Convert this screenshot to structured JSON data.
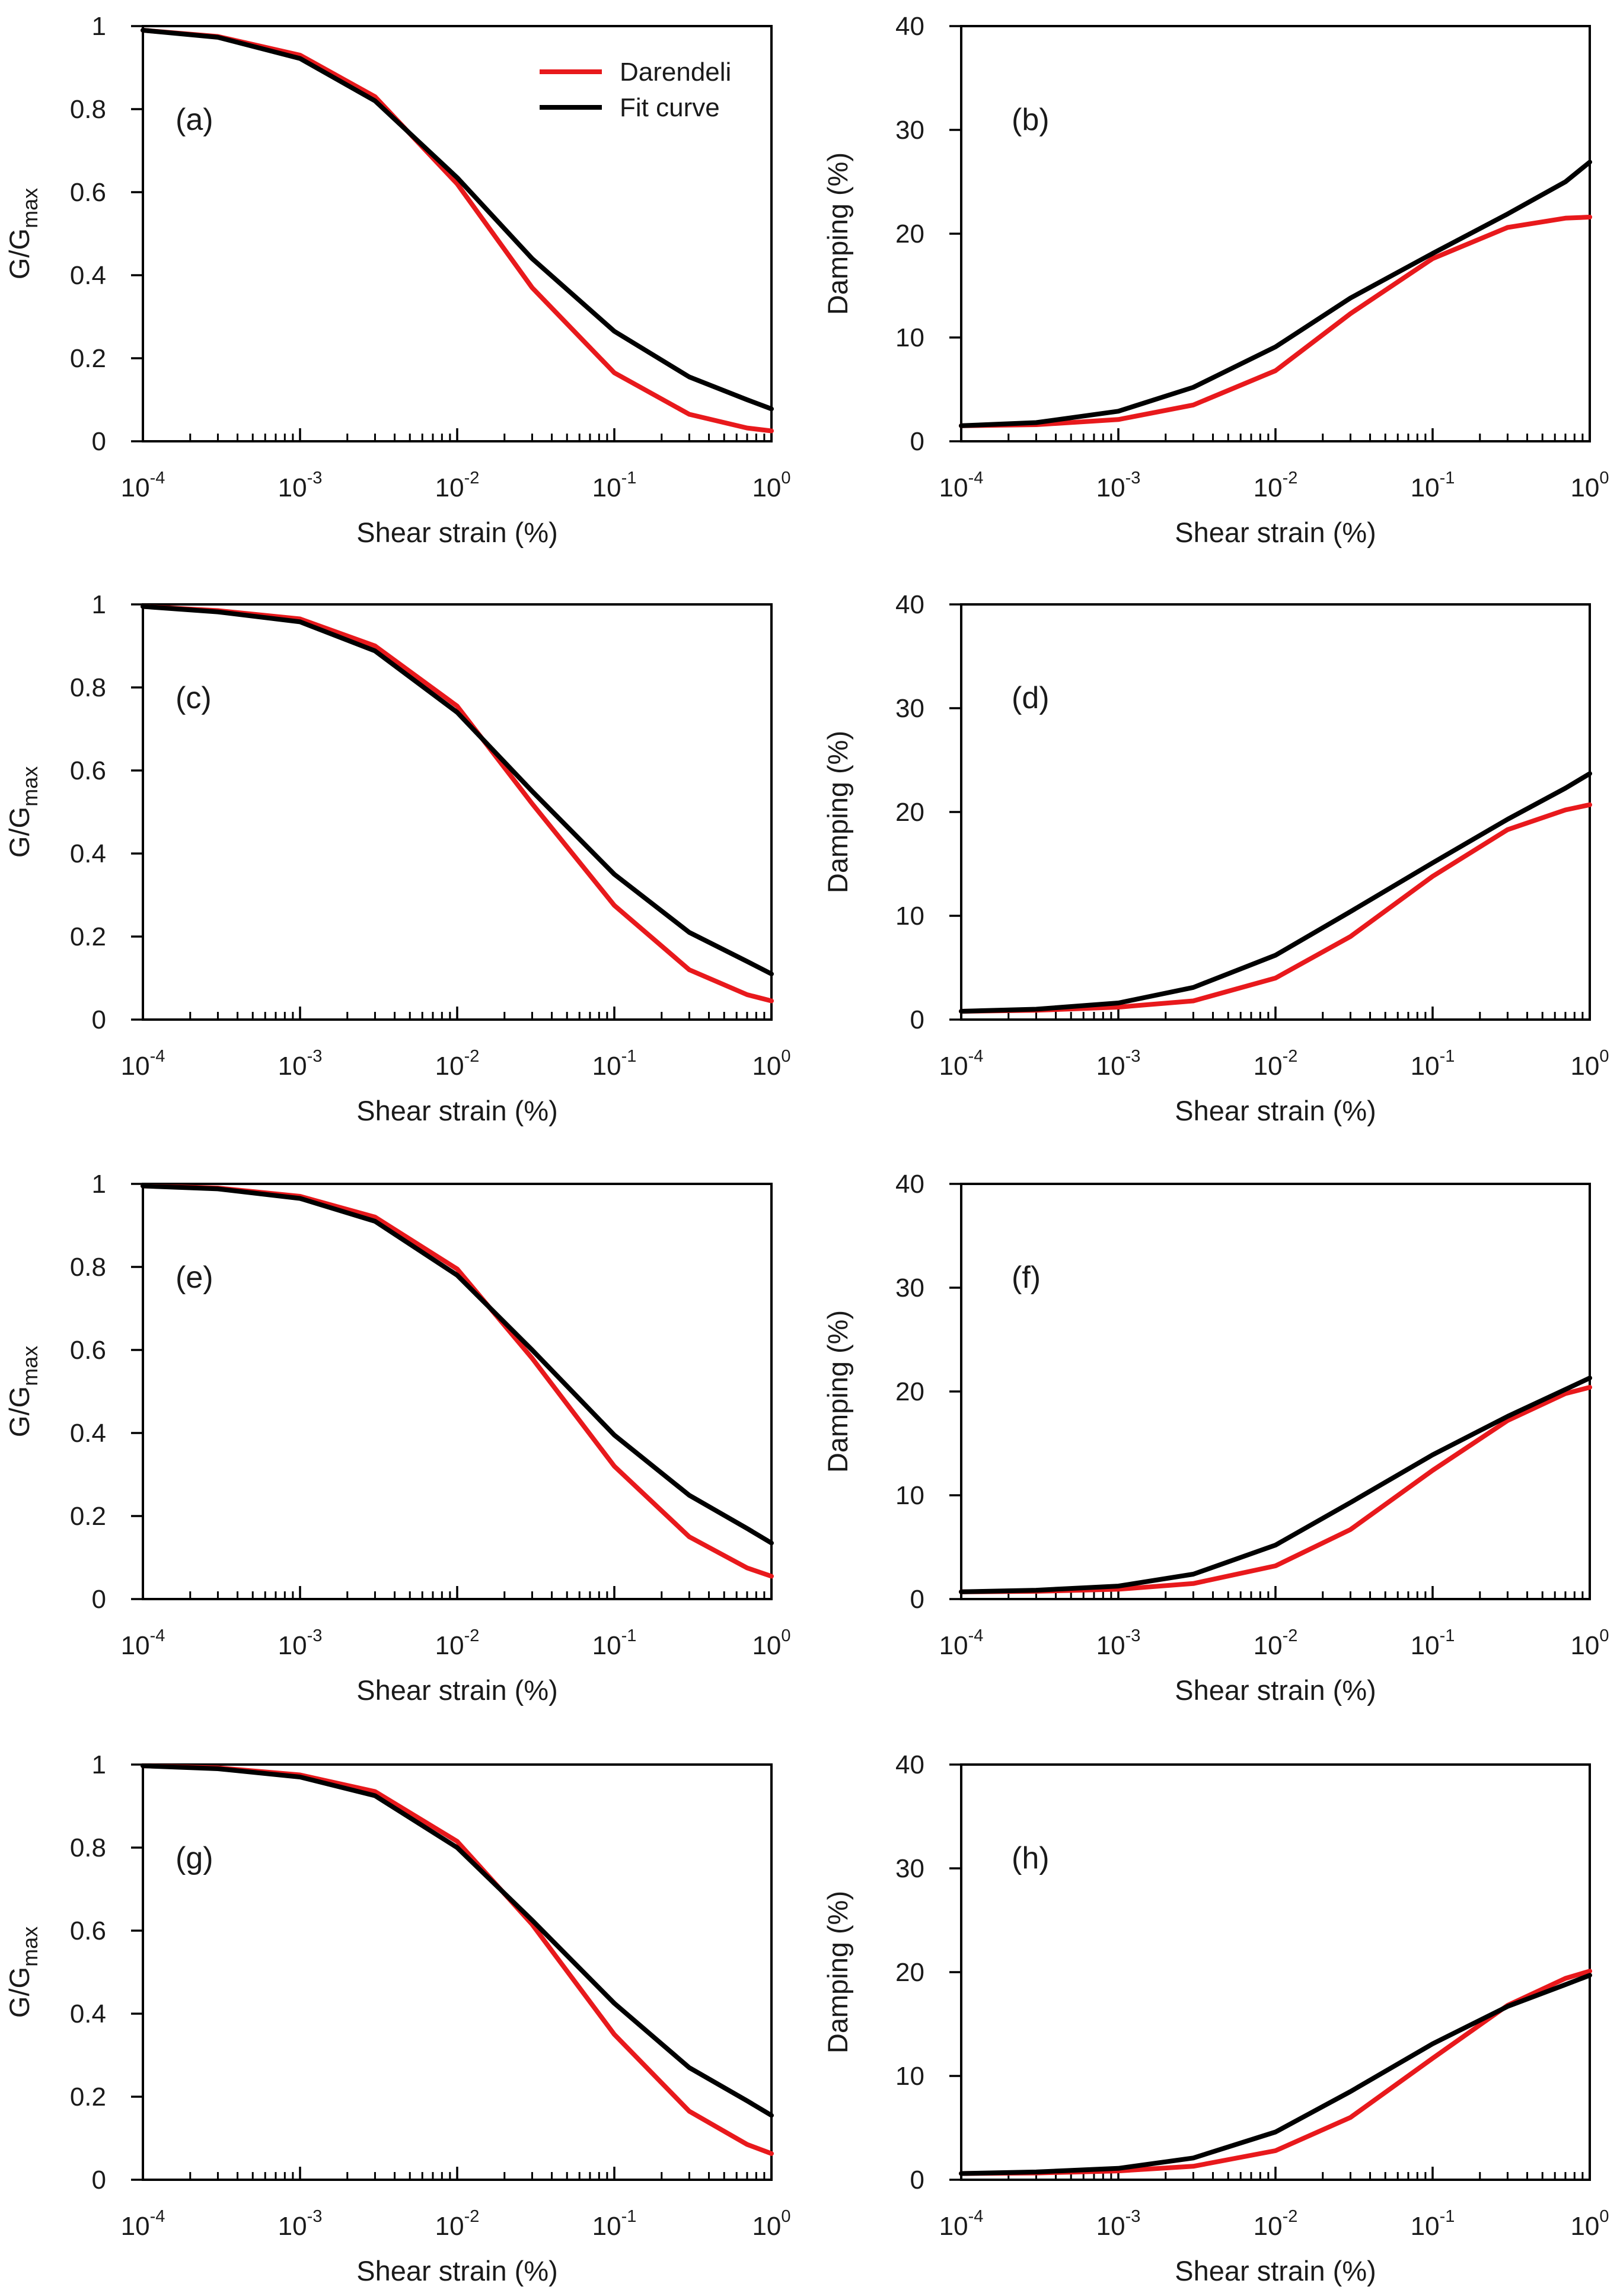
{
  "colors": {
    "darendeli": "#e8191c",
    "fit": "#000000",
    "axis": "#000000"
  },
  "legend": {
    "placement": "top-right of panel (a)",
    "items": [
      "Darendeli",
      "Fit curve"
    ]
  },
  "chart_data": [
    {
      "panel": "(a)",
      "type": "line",
      "xscale": "log",
      "xlim": [
        0.0001,
        1
      ],
      "ylim": [
        0,
        1
      ],
      "yticks": [
        "0",
        "0.2",
        "0.4",
        "0.6",
        "0.8",
        "1"
      ],
      "xlabel": "Shear strain (%)",
      "ylabel": "G/Gmax",
      "x": [
        0.0001,
        0.0003,
        0.001,
        0.003,
        0.01,
        0.03,
        0.1,
        0.3,
        0.7,
        1
      ],
      "series": [
        {
          "name": "Darendeli",
          "values": [
            0.99,
            0.975,
            0.93,
            0.83,
            0.62,
            0.37,
            0.165,
            0.065,
            0.032,
            0.025
          ]
        },
        {
          "name": "Fit curve",
          "values": [
            0.99,
            0.973,
            0.922,
            0.82,
            0.635,
            0.44,
            0.265,
            0.155,
            0.1,
            0.078
          ]
        }
      ]
    },
    {
      "panel": "(b)",
      "type": "line",
      "xscale": "log",
      "xlim": [
        0.0001,
        1
      ],
      "ylim": [
        0,
        40
      ],
      "yticks": [
        "0",
        "10",
        "20",
        "30",
        "40"
      ],
      "xlabel": "Shear strain (%)",
      "ylabel": "Damping (%)",
      "x": [
        0.0001,
        0.0003,
        0.001,
        0.003,
        0.01,
        0.03,
        0.1,
        0.3,
        0.7,
        1
      ],
      "series": [
        {
          "name": "Darendeli",
          "values": [
            1.5,
            1.6,
            2.1,
            3.5,
            6.8,
            12.3,
            17.6,
            20.6,
            21.5,
            21.6
          ]
        },
        {
          "name": "Fit curve",
          "values": [
            1.5,
            1.8,
            2.9,
            5.2,
            9.1,
            13.8,
            18.1,
            21.9,
            25.0,
            26.9
          ]
        }
      ]
    },
    {
      "panel": "(c)",
      "type": "line",
      "xscale": "log",
      "xlim": [
        0.0001,
        1
      ],
      "ylim": [
        0,
        1
      ],
      "yticks": [
        "0",
        "0.2",
        "0.4",
        "0.6",
        "0.8",
        "1"
      ],
      "xlabel": "Shear strain (%)",
      "ylabel": "G/Gmax",
      "x": [
        0.0001,
        0.0003,
        0.001,
        0.003,
        0.01,
        0.03,
        0.1,
        0.3,
        0.7,
        1
      ],
      "series": [
        {
          "name": "Darendeli",
          "values": [
            0.995,
            0.985,
            0.965,
            0.9,
            0.755,
            0.52,
            0.275,
            0.12,
            0.06,
            0.045
          ]
        },
        {
          "name": "Fit curve",
          "values": [
            0.995,
            0.982,
            0.958,
            0.888,
            0.74,
            0.55,
            0.35,
            0.21,
            0.14,
            0.11
          ]
        }
      ]
    },
    {
      "panel": "(d)",
      "type": "line",
      "xscale": "log",
      "xlim": [
        0.0001,
        1
      ],
      "ylim": [
        0,
        40
      ],
      "yticks": [
        "0",
        "10",
        "20",
        "30",
        "40"
      ],
      "xlabel": "Shear strain (%)",
      "ylabel": "Damping (%)",
      "x": [
        0.0001,
        0.0003,
        0.001,
        0.003,
        0.01,
        0.03,
        0.1,
        0.3,
        0.7,
        1
      ],
      "series": [
        {
          "name": "Darendeli",
          "values": [
            0.8,
            0.9,
            1.2,
            1.8,
            4.0,
            8.0,
            13.8,
            18.3,
            20.2,
            20.7
          ]
        },
        {
          "name": "Fit curve",
          "values": [
            0.8,
            1.0,
            1.6,
            3.1,
            6.2,
            10.4,
            15.1,
            19.3,
            22.3,
            23.7
          ]
        }
      ]
    },
    {
      "panel": "(e)",
      "type": "line",
      "xscale": "log",
      "xlim": [
        0.0001,
        1
      ],
      "ylim": [
        0,
        1
      ],
      "yticks": [
        "0",
        "0.2",
        "0.4",
        "0.6",
        "0.8",
        "1"
      ],
      "xlabel": "Shear strain (%)",
      "ylabel": "G/Gmax",
      "x": [
        0.0001,
        0.0003,
        0.001,
        0.003,
        0.01,
        0.03,
        0.1,
        0.3,
        0.7,
        1
      ],
      "series": [
        {
          "name": "Darendeli",
          "values": [
            0.995,
            0.99,
            0.97,
            0.92,
            0.795,
            0.58,
            0.32,
            0.15,
            0.075,
            0.055
          ]
        },
        {
          "name": "Fit curve",
          "values": [
            0.995,
            0.988,
            0.965,
            0.91,
            0.78,
            0.6,
            0.395,
            0.25,
            0.17,
            0.135
          ]
        }
      ]
    },
    {
      "panel": "(f)",
      "type": "line",
      "xscale": "log",
      "xlim": [
        0.0001,
        1
      ],
      "ylim": [
        0,
        40
      ],
      "yticks": [
        "0",
        "10",
        "20",
        "30",
        "40"
      ],
      "xlabel": "Shear strain (%)",
      "ylabel": "Damping (%)",
      "x": [
        0.0001,
        0.0003,
        0.001,
        0.003,
        0.01,
        0.03,
        0.1,
        0.3,
        0.7,
        1
      ],
      "series": [
        {
          "name": "Darendeli",
          "values": [
            0.7,
            0.75,
            0.95,
            1.5,
            3.2,
            6.7,
            12.4,
            17.2,
            19.8,
            20.4
          ]
        },
        {
          "name": "Fit curve",
          "values": [
            0.7,
            0.85,
            1.25,
            2.4,
            5.2,
            9.3,
            13.9,
            17.6,
            20.2,
            21.3
          ]
        }
      ]
    },
    {
      "panel": "(g)",
      "type": "line",
      "xscale": "log",
      "xlim": [
        0.0001,
        1
      ],
      "ylim": [
        0,
        1
      ],
      "yticks": [
        "0",
        "0.2",
        "0.4",
        "0.6",
        "0.8",
        "1"
      ],
      "xlabel": "Shear strain (%)",
      "ylabel": "G/Gmax",
      "x": [
        0.0001,
        0.0003,
        0.001,
        0.003,
        0.01,
        0.03,
        0.1,
        0.3,
        0.7,
        1
      ],
      "series": [
        {
          "name": "Darendeli",
          "values": [
            0.997,
            0.992,
            0.975,
            0.935,
            0.815,
            0.615,
            0.35,
            0.165,
            0.085,
            0.063
          ]
        },
        {
          "name": "Fit curve",
          "values": [
            0.997,
            0.99,
            0.97,
            0.925,
            0.8,
            0.625,
            0.425,
            0.27,
            0.19,
            0.155
          ]
        }
      ]
    },
    {
      "panel": "(h)",
      "type": "line",
      "xscale": "log",
      "xlim": [
        0.0001,
        1
      ],
      "ylim": [
        0,
        40
      ],
      "yticks": [
        "0",
        "10",
        "20",
        "30",
        "40"
      ],
      "xlabel": "Shear strain (%)",
      "ylabel": "Damping (%)",
      "x": [
        0.0001,
        0.0003,
        0.001,
        0.003,
        0.01,
        0.03,
        0.1,
        0.3,
        0.7,
        1
      ],
      "series": [
        {
          "name": "Darendeli",
          "values": [
            0.6,
            0.65,
            0.85,
            1.3,
            2.8,
            6.0,
            11.7,
            16.8,
            19.4,
            20.1
          ]
        },
        {
          "name": "Fit curve",
          "values": [
            0.6,
            0.75,
            1.1,
            2.1,
            4.6,
            8.5,
            13.1,
            16.7,
            18.8,
            19.7
          ]
        }
      ]
    }
  ]
}
